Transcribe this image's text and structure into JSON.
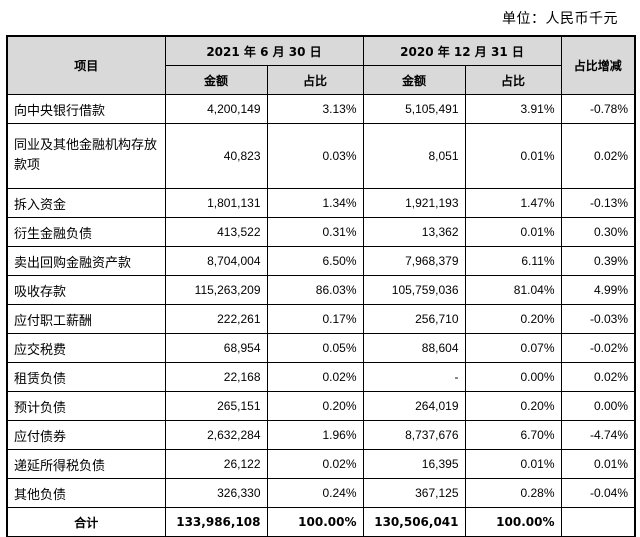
{
  "unit": "单位：人民币千元",
  "header": {
    "item": "项目",
    "period1": "2021 年 6 月 30 日",
    "period2": "2020 年 12 月 31 日",
    "amount": "金额",
    "ratio": "占比",
    "change": "占比增减"
  },
  "rows": [
    {
      "name": "向中央银行借款",
      "a1": "4,200,149",
      "r1": "3.13%",
      "a2": "5,105,491",
      "r2": "3.91%",
      "chg": "-0.78%"
    },
    {
      "name": "同业及其他金融机构存放款项",
      "a1": "40,823",
      "r1": "0.03%",
      "a2": "8,051",
      "r2": "0.01%",
      "chg": "0.02%"
    },
    {
      "name": "拆入资金",
      "a1": "1,801,131",
      "r1": "1.34%",
      "a2": "1,921,193",
      "r2": "1.47%",
      "chg": "-0.13%"
    },
    {
      "name": "衍生金融负债",
      "a1": "413,522",
      "r1": "0.31%",
      "a2": "13,362",
      "r2": "0.01%",
      "chg": "0.30%"
    },
    {
      "name": "卖出回购金融资产款",
      "a1": "8,704,004",
      "r1": "6.50%",
      "a2": "7,968,379",
      "r2": "6.11%",
      "chg": "0.39%"
    },
    {
      "name": "吸收存款",
      "a1": "115,263,209",
      "r1": "86.03%",
      "a2": "105,759,036",
      "r2": "81.04%",
      "chg": "4.99%"
    },
    {
      "name": "应付职工薪酬",
      "a1": "222,261",
      "r1": "0.17%",
      "a2": "256,710",
      "r2": "0.20%",
      "chg": "-0.03%"
    },
    {
      "name": "应交税费",
      "a1": "68,954",
      "r1": "0.05%",
      "a2": "88,604",
      "r2": "0.07%",
      "chg": "-0.02%"
    },
    {
      "name": "租赁负债",
      "a1": "22,168",
      "r1": "0.02%",
      "a2": "-",
      "r2": "0.00%",
      "chg": "0.02%"
    },
    {
      "name": "预计负债",
      "a1": "265,151",
      "r1": "0.20%",
      "a2": "264,019",
      "r2": "0.20%",
      "chg": "0.00%"
    },
    {
      "name": "应付债券",
      "a1": "2,632,284",
      "r1": "1.96%",
      "a2": "8,737,676",
      "r2": "6.70%",
      "chg": "-4.74%"
    },
    {
      "name": "递延所得税负债",
      "a1": "26,122",
      "r1": "0.02%",
      "a2": "16,395",
      "r2": "0.01%",
      "chg": "0.01%"
    },
    {
      "name": "其他负债",
      "a1": "326,330",
      "r1": "0.24%",
      "a2": "367,125",
      "r2": "0.28%",
      "chg": "-0.04%"
    }
  ],
  "total": {
    "name": "合计",
    "a1": "133,986,108",
    "r1": "100.00%",
    "a2": "130,506,041",
    "r2": "100.00%",
    "chg": ""
  }
}
